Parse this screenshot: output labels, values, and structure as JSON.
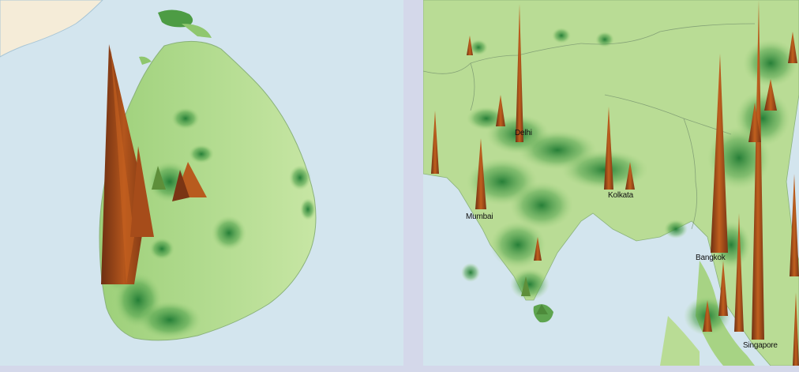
{
  "colors": {
    "frame": "#d4d8ea",
    "ocean": "#d3e5ee",
    "land_base": "#b9dc95",
    "land_dark": "#2f8a3c",
    "spike_dark": "#7a3514",
    "spike_light": "#c8631f",
    "neighbor_land": "#f5ecd8"
  },
  "panels": [
    {
      "name": "Sri Lanka density relief",
      "labels": []
    },
    {
      "name": "South and Southeast Asia density relief",
      "labels": [
        {
          "text": "Delhi"
        },
        {
          "text": "Mumbai"
        },
        {
          "text": "Kolkata"
        },
        {
          "text": "Bangkok"
        },
        {
          "text": "Singapore"
        }
      ]
    }
  ]
}
